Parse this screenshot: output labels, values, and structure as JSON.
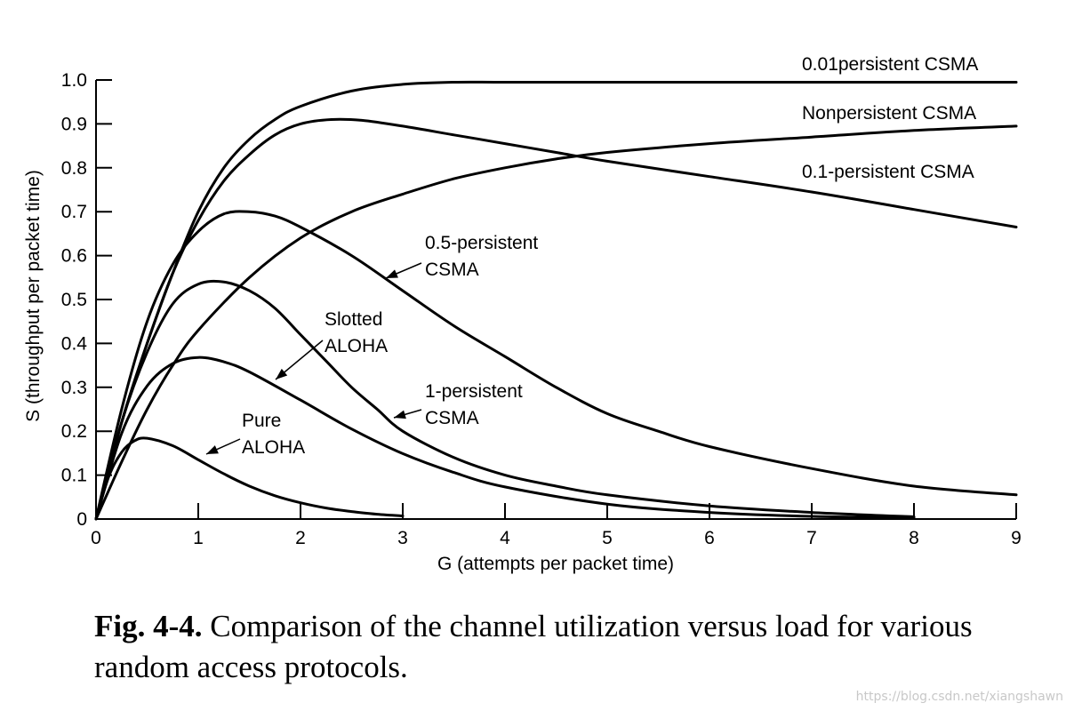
{
  "chart_data": {
    "type": "line",
    "xlabel": "G (attempts per packet time)",
    "ylabel": "S (throughput per packet time)",
    "xlim": [
      0,
      9
    ],
    "ylim": [
      0,
      1.0
    ],
    "x_ticks": [
      "0",
      "1",
      "2",
      "3",
      "4",
      "5",
      "6",
      "7",
      "8",
      "9"
    ],
    "y_ticks": [
      "0",
      "0.1",
      "0.2",
      "0.3",
      "0.4",
      "0.5",
      "0.6",
      "0.7",
      "0.8",
      "0.9",
      "1.0"
    ],
    "series": [
      {
        "name": "0.01persistent CSMA",
        "x": [
          0,
          0.25,
          0.5,
          0.75,
          1,
          1.25,
          1.5,
          1.75,
          2,
          2.5,
          3,
          3.5,
          4,
          5,
          6,
          7,
          8,
          9
        ],
        "y": [
          0,
          0.22,
          0.4,
          0.56,
          0.7,
          0.8,
          0.865,
          0.91,
          0.94,
          0.975,
          0.99,
          0.995,
          0.995,
          0.995,
          0.995,
          0.995,
          0.995,
          0.995
        ]
      },
      {
        "name": "Nonpersistent CSMA",
        "x": [
          0,
          0.25,
          0.5,
          0.75,
          1,
          1.5,
          2,
          2.5,
          3,
          3.5,
          4,
          4.5,
          5,
          6,
          7,
          8,
          9
        ],
        "y": [
          0,
          0.13,
          0.25,
          0.35,
          0.43,
          0.55,
          0.64,
          0.7,
          0.74,
          0.775,
          0.8,
          0.82,
          0.835,
          0.855,
          0.87,
          0.885,
          0.895
        ]
      },
      {
        "name": "0.1-persistent CSMA",
        "x": [
          0,
          0.25,
          0.5,
          0.75,
          1,
          1.25,
          1.5,
          1.75,
          2,
          2.3,
          2.6,
          3,
          3.5,
          4,
          4.5,
          5,
          6,
          7,
          8,
          9
        ],
        "y": [
          0,
          0.22,
          0.4,
          0.56,
          0.68,
          0.77,
          0.83,
          0.875,
          0.9,
          0.91,
          0.908,
          0.895,
          0.875,
          0.855,
          0.835,
          0.815,
          0.78,
          0.745,
          0.705,
          0.665
        ]
      },
      {
        "name": "0.5-persistent CSMA",
        "x": [
          0,
          0.25,
          0.5,
          0.75,
          1,
          1.25,
          1.5,
          1.75,
          2,
          2.5,
          3,
          3.5,
          4,
          4.5,
          5,
          5.5,
          6,
          7,
          8,
          9
        ],
        "y": [
          0,
          0.25,
          0.45,
          0.58,
          0.655,
          0.695,
          0.7,
          0.69,
          0.665,
          0.6,
          0.52,
          0.44,
          0.37,
          0.3,
          0.24,
          0.2,
          0.165,
          0.115,
          0.075,
          0.055
        ]
      },
      {
        "name": "Slotted ALOHA",
        "x": [
          0,
          0.25,
          0.5,
          0.75,
          1,
          1.25,
          1.5,
          2,
          2.5,
          3,
          3.5,
          4,
          5,
          6,
          7,
          8
        ],
        "y": [
          0,
          0.195,
          0.303,
          0.354,
          0.368,
          0.358,
          0.335,
          0.271,
          0.205,
          0.149,
          0.106,
          0.073,
          0.034,
          0.015,
          0.006,
          0.003
        ]
      },
      {
        "name": "1-persistent CSMA",
        "x": [
          0,
          0.25,
          0.5,
          0.75,
          1,
          1.25,
          1.5,
          1.75,
          2,
          2.25,
          2.5,
          2.75,
          3,
          3.5,
          4,
          4.5,
          5,
          6,
          7,
          8
        ],
        "y": [
          0,
          0.22,
          0.38,
          0.49,
          0.535,
          0.54,
          0.52,
          0.48,
          0.42,
          0.36,
          0.3,
          0.25,
          0.2,
          0.14,
          0.1,
          0.075,
          0.055,
          0.03,
          0.015,
          0.005
        ]
      },
      {
        "name": "Pure ALOHA",
        "x": [
          0,
          0.125,
          0.25,
          0.375,
          0.5,
          0.75,
          1,
          1.25,
          1.5,
          1.75,
          2,
          2.25,
          2.5,
          2.75,
          3
        ],
        "y": [
          0,
          0.097,
          0.152,
          0.178,
          0.184,
          0.167,
          0.135,
          0.103,
          0.075,
          0.053,
          0.037,
          0.025,
          0.017,
          0.011,
          0.007
        ]
      }
    ],
    "annotations": [
      {
        "lines": [
          "0.01persistent CSMA"
        ]
      },
      {
        "lines": [
          "Nonpersistent CSMA"
        ]
      },
      {
        "lines": [
          "0.1-persistent CSMA"
        ]
      },
      {
        "lines": [
          "0.5-persistent",
          "CSMA"
        ]
      },
      {
        "lines": [
          "Slotted",
          "ALOHA"
        ]
      },
      {
        "lines": [
          "1-persistent",
          "CSMA"
        ]
      },
      {
        "lines": [
          "Pure",
          "ALOHA"
        ]
      }
    ]
  },
  "caption": {
    "label": "Fig.  4-4.",
    "text": " Comparison of the channel utilization versus load for various random access protocols."
  },
  "watermark": "https://blog.csdn.net/xiangshawn"
}
